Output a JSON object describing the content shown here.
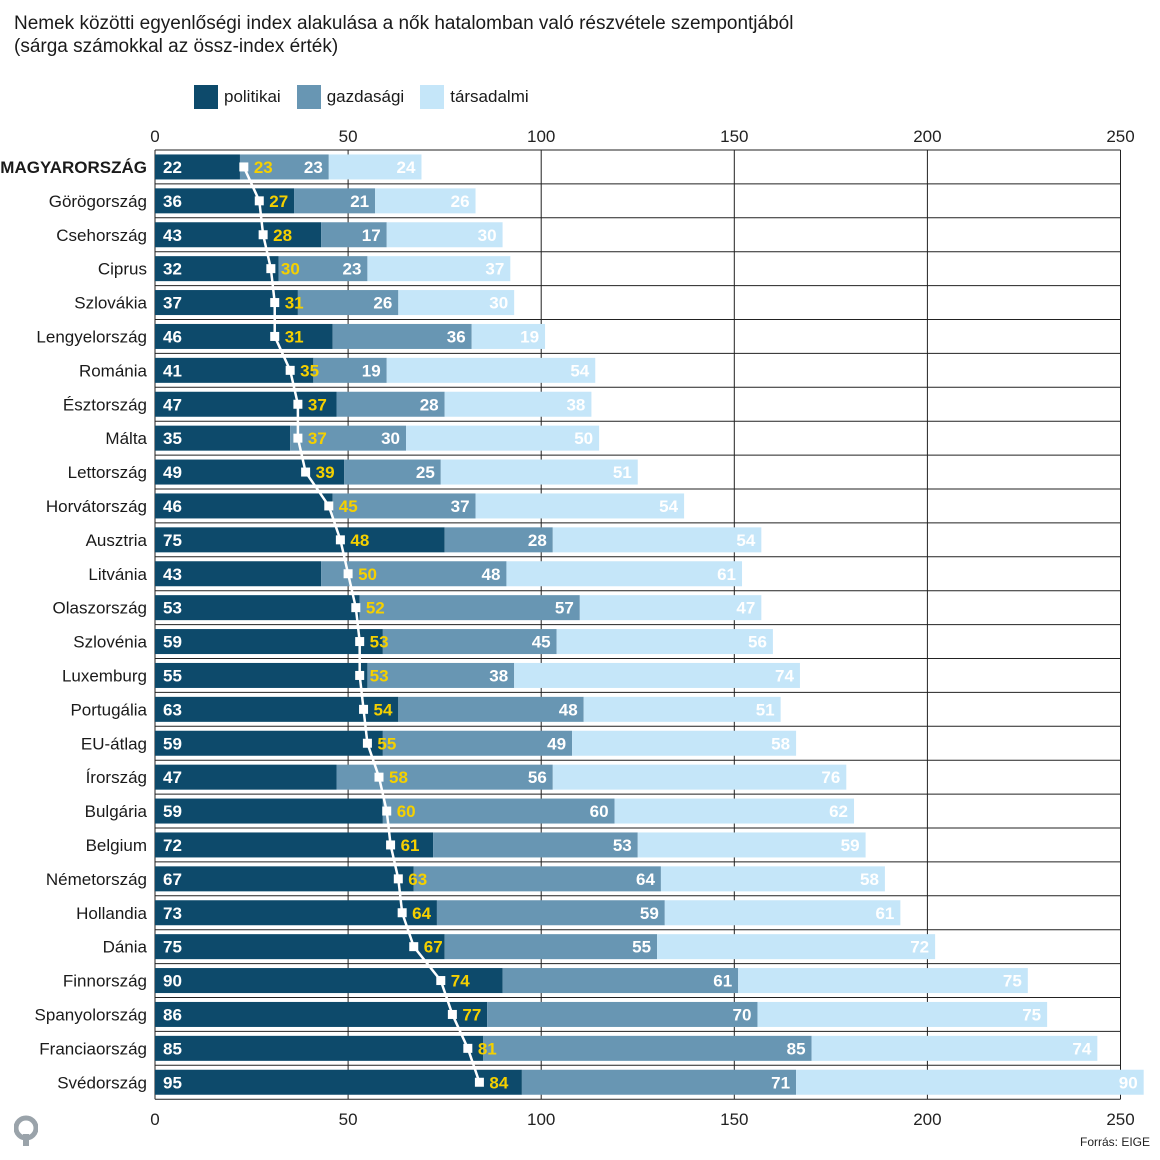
{
  "title": {
    "line1": "Nemek közötti egyenlőségi index alakulása a nők hatalomban való részvétele szempontjából",
    "line2": "(sárga számokkal az össz-index érték)"
  },
  "legend": [
    {
      "label": "politikai",
      "color": "#0d4a6b"
    },
    {
      "label": "gazdasági",
      "color": "#6896b3"
    },
    {
      "label": "társadalmi",
      "color": "#c5e6f9"
    }
  ],
  "source": "Forrás: EIGE",
  "logo": "q-logo",
  "colors": {
    "index_label": "#f5d000",
    "index_line": "#ffffff",
    "grid": "#222222"
  },
  "chart_data": {
    "type": "bar",
    "stacked": true,
    "orientation": "horizontal",
    "xlim": [
      0,
      250
    ],
    "xticks": [
      0,
      50,
      100,
      150,
      200,
      250
    ],
    "grid": true,
    "legend_position": "top",
    "categories": [
      "MAGYARORSZÁG",
      "Görögország",
      "Csehország",
      "Ciprus",
      "Szlovákia",
      "Lengyelország",
      "Románia",
      "Észtország",
      "Málta",
      "Lettország",
      "Horvátország",
      "Ausztria",
      "Litvánia",
      "Olaszország",
      "Szlovénia",
      "Luxemburg",
      "Portugália",
      "EU-átlag",
      "Írország",
      "Bulgária",
      "Belgium",
      "Németország",
      "Hollandia",
      "Dánia",
      "Finnország",
      "Spanyolország",
      "Franciaország",
      "Svédország"
    ],
    "highlight_category": "MAGYARORSZÁG",
    "series": [
      {
        "name": "politikai",
        "values": [
          22,
          36,
          43,
          32,
          37,
          46,
          41,
          47,
          35,
          49,
          46,
          75,
          43,
          53,
          59,
          55,
          63,
          59,
          47,
          59,
          72,
          67,
          73,
          75,
          90,
          86,
          85,
          95
        ]
      },
      {
        "name": "gazdasági",
        "values": [
          23,
          21,
          17,
          23,
          26,
          36,
          19,
          28,
          30,
          25,
          37,
          28,
          48,
          57,
          45,
          38,
          48,
          49,
          56,
          60,
          53,
          64,
          59,
          55,
          61,
          70,
          85,
          71
        ]
      },
      {
        "name": "társadalmi",
        "values": [
          24,
          26,
          30,
          37,
          30,
          19,
          54,
          38,
          50,
          51,
          54,
          54,
          61,
          47,
          56,
          74,
          51,
          58,
          76,
          62,
          59,
          58,
          61,
          72,
          75,
          75,
          74,
          90
        ]
      }
    ],
    "index": [
      23,
      27,
      28,
      30,
      31,
      31,
      35,
      37,
      37,
      39,
      45,
      48,
      50,
      52,
      53,
      53,
      54,
      55,
      58,
      60,
      61,
      63,
      64,
      67,
      74,
      77,
      81,
      84
    ]
  }
}
